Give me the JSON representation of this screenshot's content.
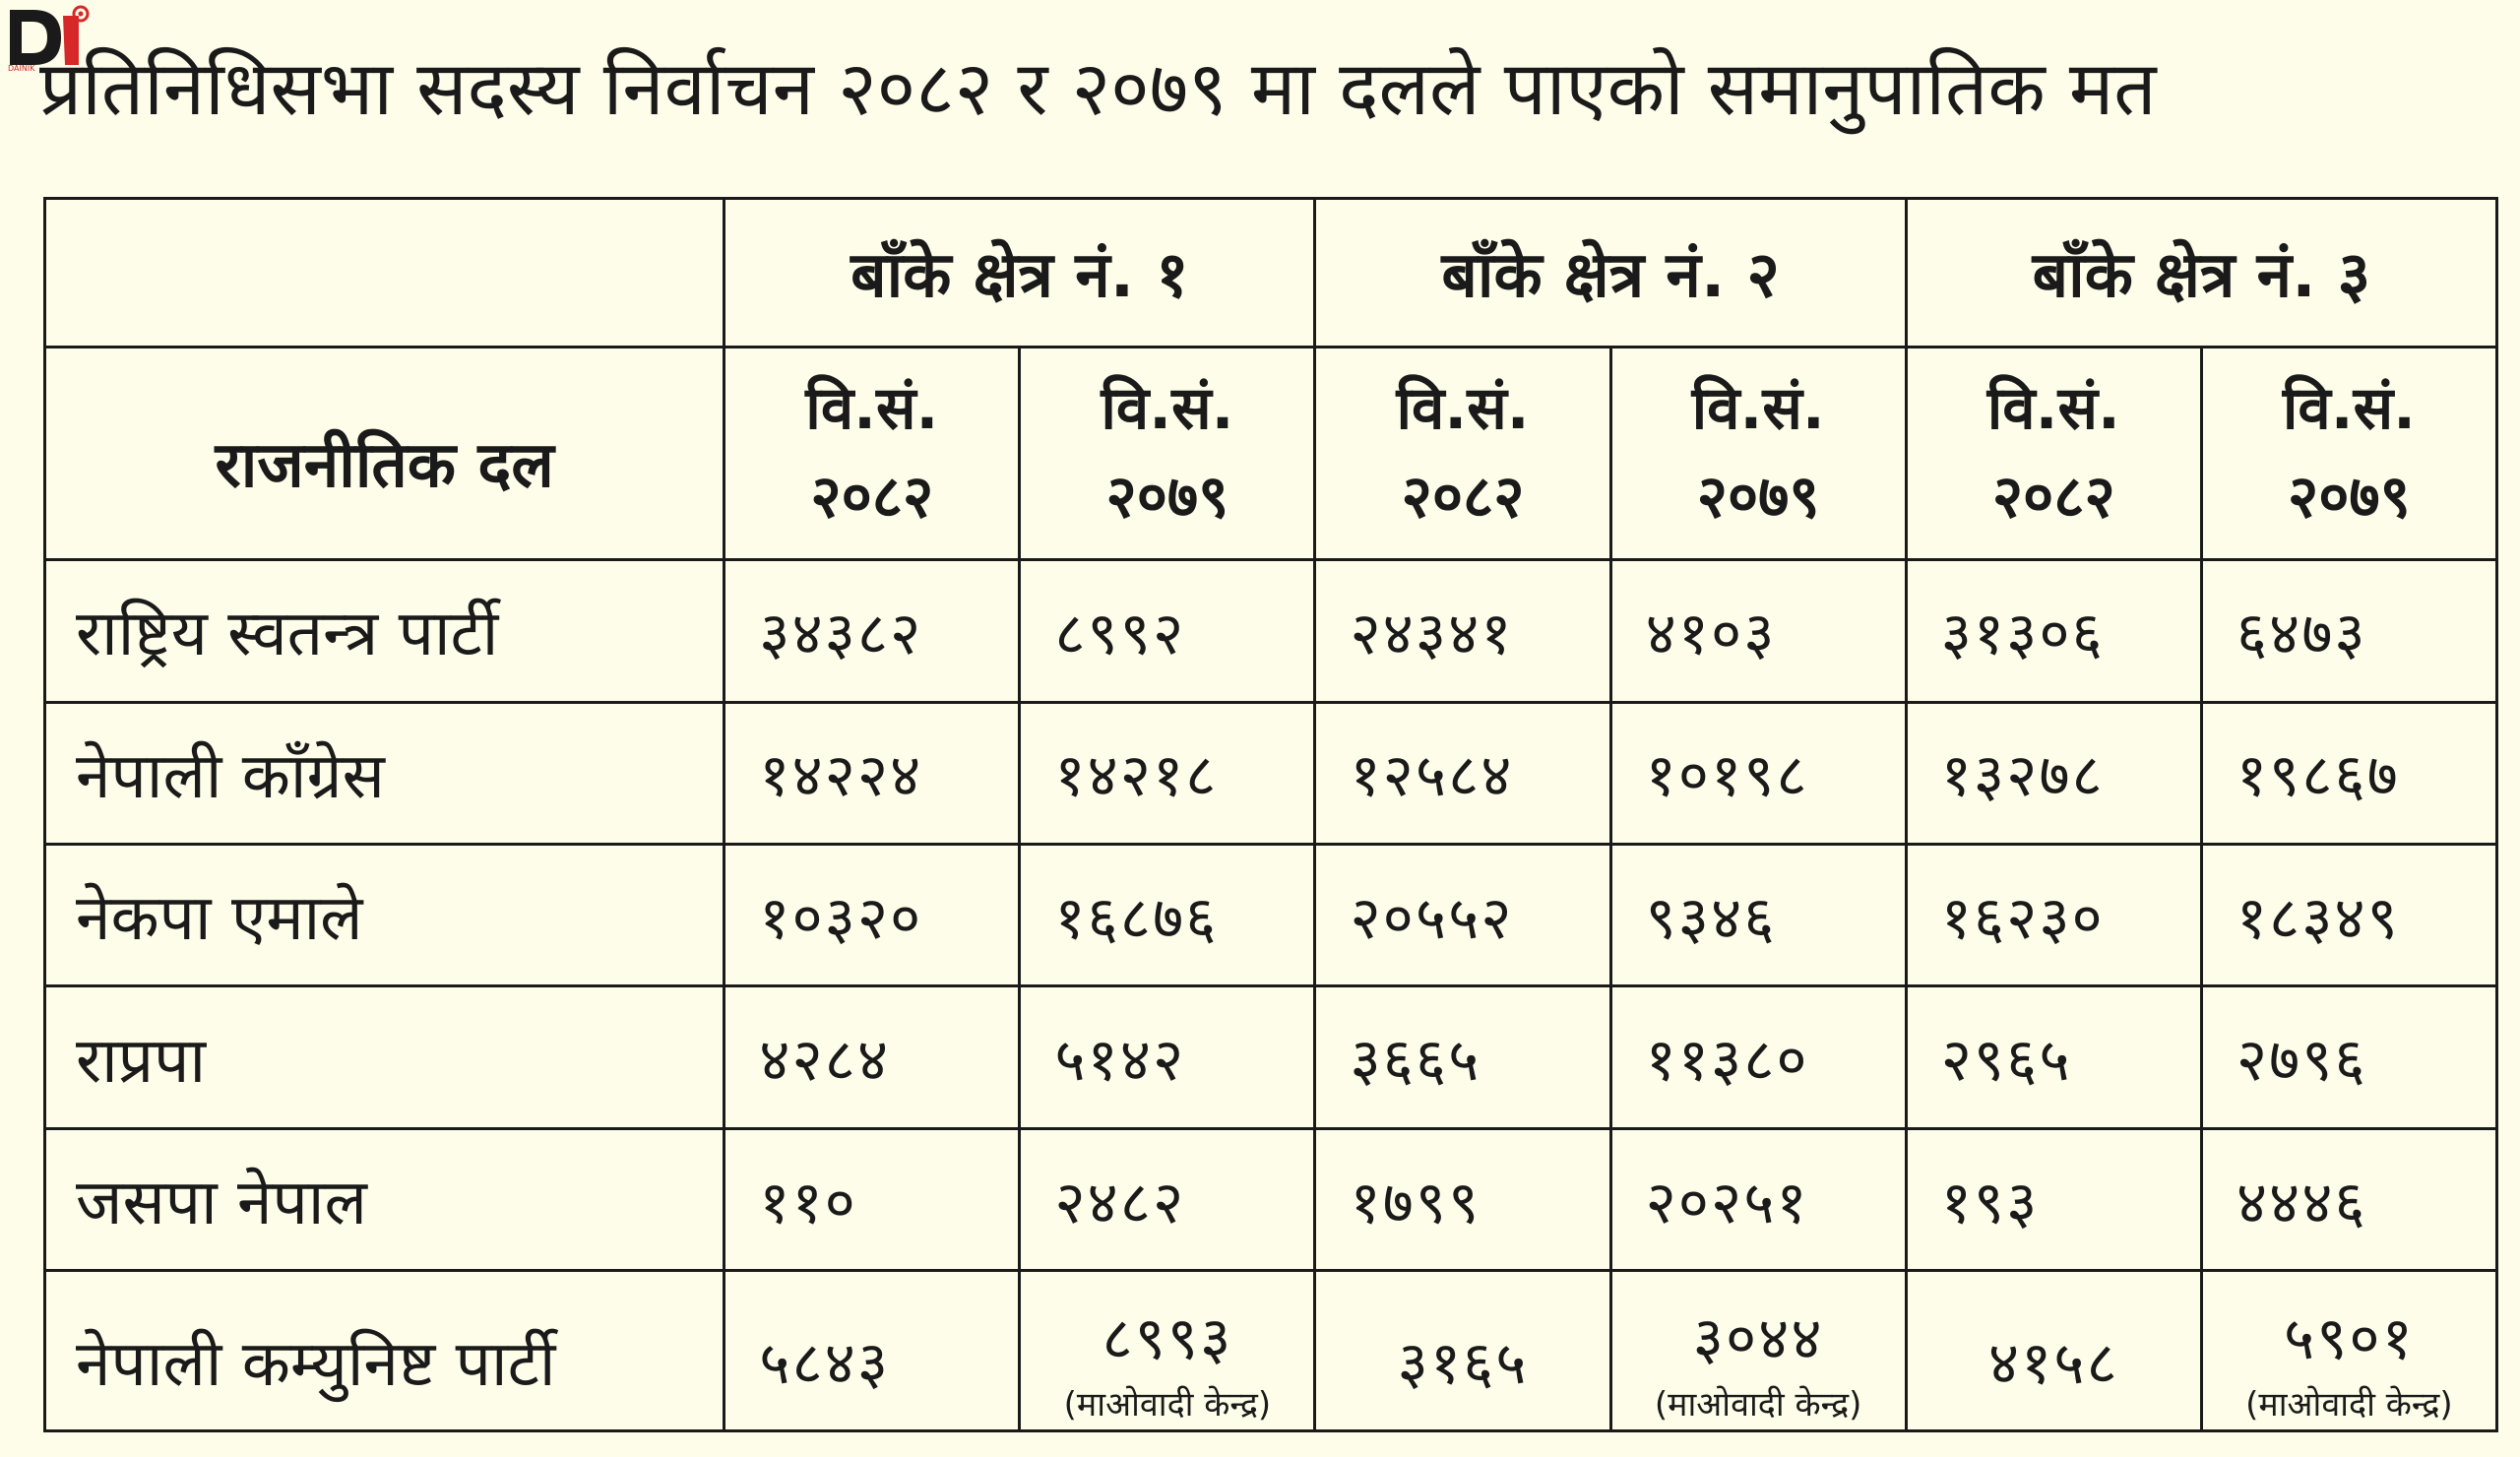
{
  "logo": {
    "name": "dainik-logo-icon",
    "text": "DAINIK"
  },
  "title": "प्रतिनिधिसभा सदस्य निर्वाचन २०८२ र २०७९ मा दलले पाएको समानुपातिक मत",
  "table": {
    "party_header": "राजनीतिक दल",
    "districts": [
      "बाँके क्षेत्र नं. १",
      "बाँके क्षेत्र नं. २",
      "बाँके क्षेत्र नं. ३"
    ],
    "year_label": "वि.सं.",
    "years": [
      "२०८२",
      "२०७९",
      "२०८२",
      "२०७९",
      "२०८२",
      "२०७९"
    ],
    "rows": [
      {
        "party": "राष्ट्रिय स्वतन्त्र पार्टी",
        "votes": [
          "३४३८२",
          "८९९२",
          "२४३४१",
          "४१०३",
          "३१३०६",
          "६४७३"
        ]
      },
      {
        "party": "नेपाली काँग्रेस",
        "votes": [
          "१४२२४",
          "१४२१८",
          "१२५८४",
          "१०१९८",
          "१३२७८",
          "१९८६७"
        ]
      },
      {
        "party": "नेकपा एमाले",
        "votes": [
          "१०३२०",
          "१६८७६",
          "२०५५२",
          "९३४६",
          "१६२३०",
          "१८३४९"
        ]
      },
      {
        "party": "राप्रपा",
        "votes": [
          "४२८४",
          "५१४२",
          "३६६५",
          "११३८०",
          "२९६५",
          "२७९६"
        ]
      },
      {
        "party": "जसपा नेपाल",
        "votes": [
          "११०",
          "२४८२",
          "१७९९",
          "२०२५१",
          "१९३",
          "४४४६"
        ]
      },
      {
        "party": "नेपाली कम्युनिष्ट पार्टी",
        "votes": [
          "५८४३",
          "८९९३",
          "३१६५",
          "३०४४",
          "४१५८",
          "५९०१"
        ]
      }
    ],
    "maoist_note": "(माओवादी केन्द्र)"
  }
}
